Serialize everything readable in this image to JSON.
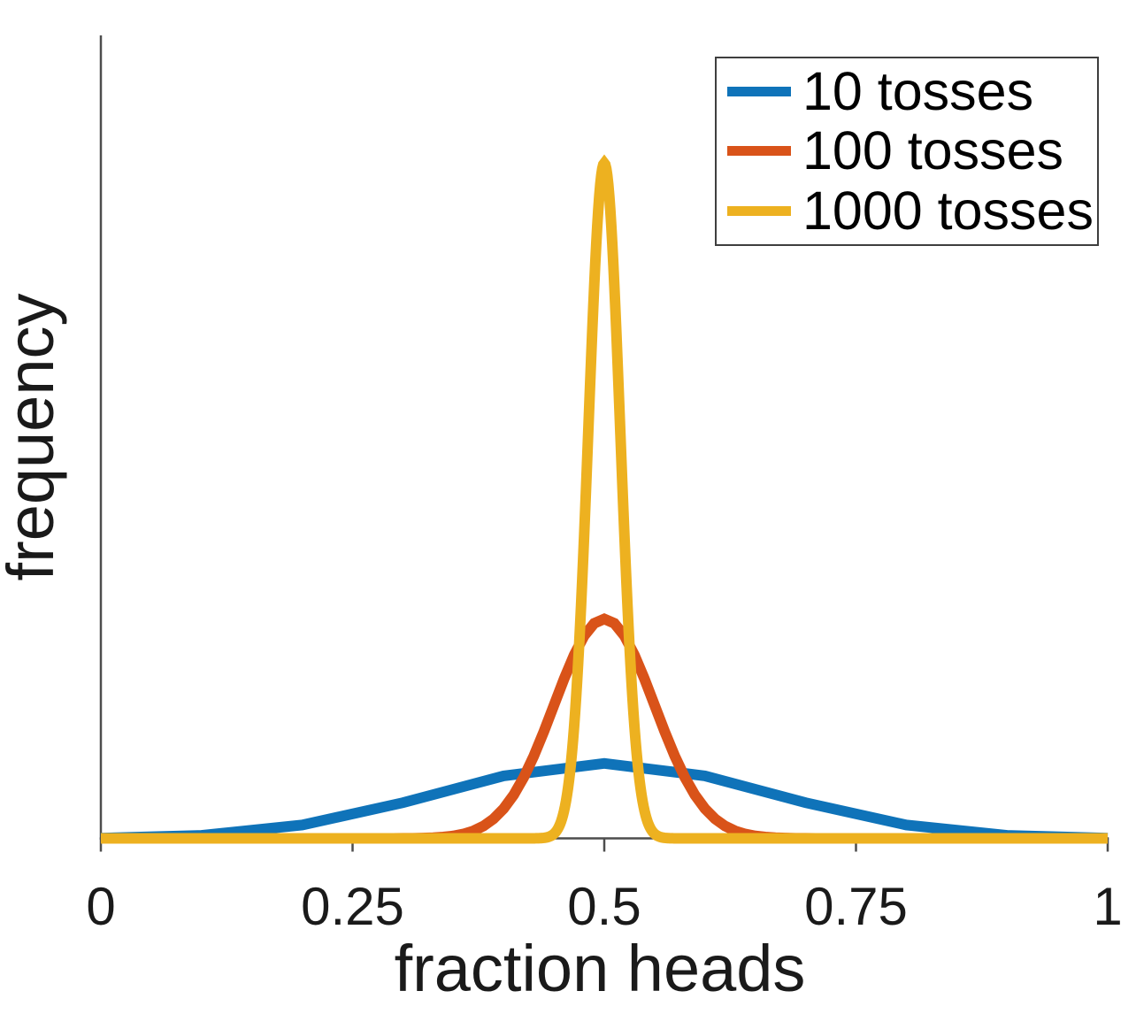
{
  "chart_data": {
    "type": "line",
    "xlabel": "fraction heads",
    "ylabel": "frequency",
    "xlim": [
      0,
      1
    ],
    "x_ticks": [
      0,
      0.25,
      0.5,
      0.75,
      1
    ],
    "x_tick_labels": [
      "0",
      "0.25",
      "0.5",
      "0.75",
      "1"
    ],
    "y_tick_labels": [],
    "grid": false,
    "y_unit": "relative frequency (peak of 1000-toss curve = 1)",
    "legend": {
      "position": "top-right",
      "entries": [
        "10 tosses",
        "100 tosses",
        "1000 tosses"
      ]
    },
    "axis_color": "#4d4d4d",
    "tick_label_color": "#1a1a1a",
    "series": [
      {
        "name": "10 tosses",
        "color": "#0f73b9",
        "line_width": 12,
        "shape": "piecewise-linear",
        "x": [
          0,
          0.1,
          0.2,
          0.3,
          0.4,
          0.5,
          0.6,
          0.7,
          0.8,
          0.9,
          1
        ],
        "y": [
          0.0004,
          0.0044,
          0.0198,
          0.0528,
          0.0925,
          0.111,
          0.0925,
          0.0528,
          0.0198,
          0.0044,
          0.0004
        ],
        "peak": {
          "x": 0.5,
          "y": 0.111
        }
      },
      {
        "name": "100 tosses",
        "color": "#d95319",
        "line_width": 12,
        "shape": "gaussian",
        "gaussian": {
          "mu": 0.5,
          "sigma": 0.05,
          "peak": 0.325
        },
        "sample_step": 0.01,
        "peak": {
          "x": 0.5,
          "y": 0.325
        }
      },
      {
        "name": "1000 tosses",
        "color": "#edb120",
        "line_width": 12,
        "shape": "gaussian",
        "gaussian": {
          "mu": 0.5,
          "sigma": 0.0158,
          "peak": 1.0
        },
        "sample_step": 0.001,
        "peak": {
          "x": 0.5,
          "y": 1.0
        }
      }
    ]
  }
}
